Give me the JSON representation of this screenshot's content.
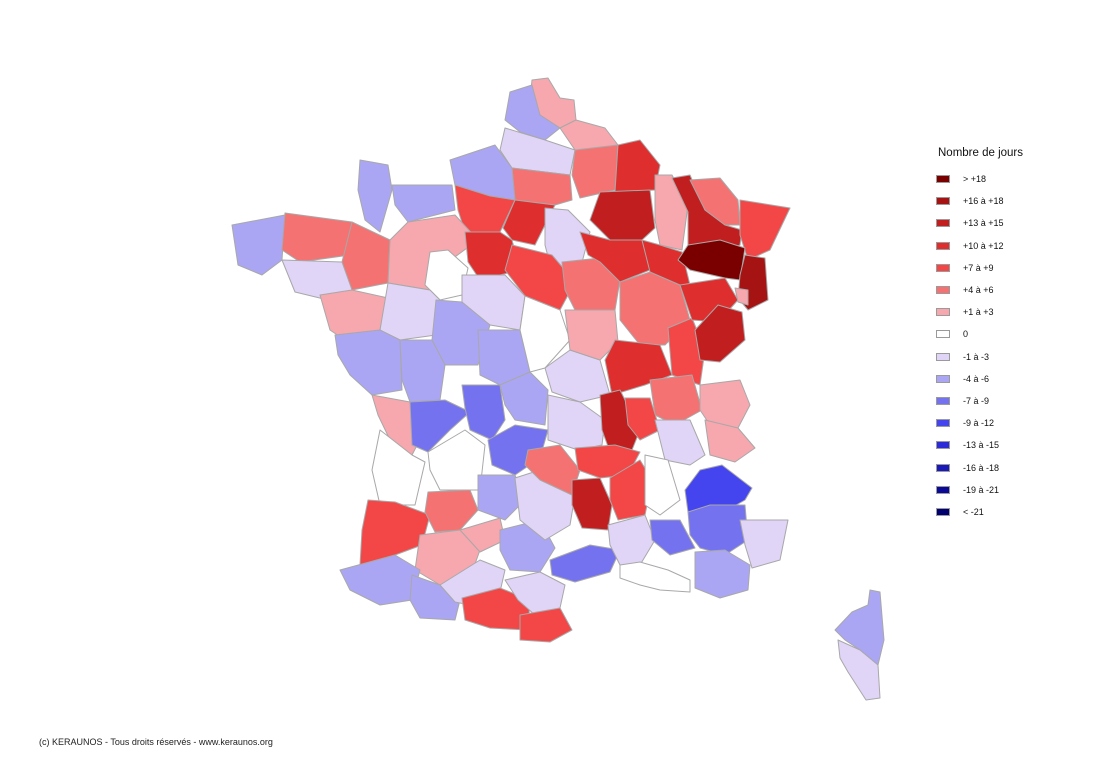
{
  "legend": {
    "title": "Nombre de jours",
    "items": [
      {
        "label": "> +18",
        "color": "#7a0000"
      },
      {
        "label": "+16 à +18",
        "color": "#a51313"
      },
      {
        "label": "+13 à +15",
        "color": "#c11f1f"
      },
      {
        "label": "+10 à +12",
        "color": "#de2e2e"
      },
      {
        "label": "+7 à +9",
        "color": "#f34646"
      },
      {
        "label": "+4 à +6",
        "color": "#f47272"
      },
      {
        "label": "+1 à +3",
        "color": "#f7a7ae"
      },
      {
        "label": "0",
        "color": "#ffffff"
      },
      {
        "label": "-1 à -3",
        "color": "#e0d4f7"
      },
      {
        "label": "-4 à -6",
        "color": "#aaa6f4"
      },
      {
        "label": "-7 à -9",
        "color": "#7472ee"
      },
      {
        "label": "-9 à -12",
        "color": "#4545f0"
      },
      {
        "label": "-13 à -15",
        "color": "#2b2bd8"
      },
      {
        "label": "-16 à -18",
        "color": "#1a1ab8"
      },
      {
        "label": "-19 à -21",
        "color": "#0a0a96"
      },
      {
        "label": "< -21",
        "color": "#000070"
      }
    ]
  },
  "credit": "(c) KERAUNOS - Tous droits réservés - www.keraunos.org"
}
